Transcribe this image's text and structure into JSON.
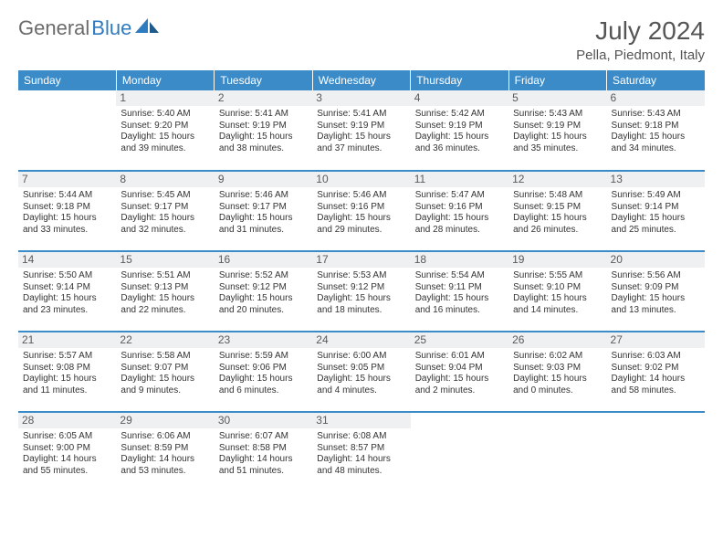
{
  "logo": {
    "text1": "General",
    "text2": "Blue"
  },
  "title": "July 2024",
  "location": "Pella, Piedmont, Italy",
  "colors": {
    "header_bg": "#3b8bc9",
    "header_text": "#ffffff",
    "daynum_bg": "#eef0f2",
    "border": "#3b8bc9",
    "logo_gray": "#6b6b6b",
    "logo_blue": "#2f7bbf"
  },
  "day_headers": [
    "Sunday",
    "Monday",
    "Tuesday",
    "Wednesday",
    "Thursday",
    "Friday",
    "Saturday"
  ],
  "start_offset": 1,
  "days": [
    {
      "n": 1,
      "sr": "5:40 AM",
      "ss": "9:20 PM",
      "dl": "15 hours and 39 minutes."
    },
    {
      "n": 2,
      "sr": "5:41 AM",
      "ss": "9:19 PM",
      "dl": "15 hours and 38 minutes."
    },
    {
      "n": 3,
      "sr": "5:41 AM",
      "ss": "9:19 PM",
      "dl": "15 hours and 37 minutes."
    },
    {
      "n": 4,
      "sr": "5:42 AM",
      "ss": "9:19 PM",
      "dl": "15 hours and 36 minutes."
    },
    {
      "n": 5,
      "sr": "5:43 AM",
      "ss": "9:19 PM",
      "dl": "15 hours and 35 minutes."
    },
    {
      "n": 6,
      "sr": "5:43 AM",
      "ss": "9:18 PM",
      "dl": "15 hours and 34 minutes."
    },
    {
      "n": 7,
      "sr": "5:44 AM",
      "ss": "9:18 PM",
      "dl": "15 hours and 33 minutes."
    },
    {
      "n": 8,
      "sr": "5:45 AM",
      "ss": "9:17 PM",
      "dl": "15 hours and 32 minutes."
    },
    {
      "n": 9,
      "sr": "5:46 AM",
      "ss": "9:17 PM",
      "dl": "15 hours and 31 minutes."
    },
    {
      "n": 10,
      "sr": "5:46 AM",
      "ss": "9:16 PM",
      "dl": "15 hours and 29 minutes."
    },
    {
      "n": 11,
      "sr": "5:47 AM",
      "ss": "9:16 PM",
      "dl": "15 hours and 28 minutes."
    },
    {
      "n": 12,
      "sr": "5:48 AM",
      "ss": "9:15 PM",
      "dl": "15 hours and 26 minutes."
    },
    {
      "n": 13,
      "sr": "5:49 AM",
      "ss": "9:14 PM",
      "dl": "15 hours and 25 minutes."
    },
    {
      "n": 14,
      "sr": "5:50 AM",
      "ss": "9:14 PM",
      "dl": "15 hours and 23 minutes."
    },
    {
      "n": 15,
      "sr": "5:51 AM",
      "ss": "9:13 PM",
      "dl": "15 hours and 22 minutes."
    },
    {
      "n": 16,
      "sr": "5:52 AM",
      "ss": "9:12 PM",
      "dl": "15 hours and 20 minutes."
    },
    {
      "n": 17,
      "sr": "5:53 AM",
      "ss": "9:12 PM",
      "dl": "15 hours and 18 minutes."
    },
    {
      "n": 18,
      "sr": "5:54 AM",
      "ss": "9:11 PM",
      "dl": "15 hours and 16 minutes."
    },
    {
      "n": 19,
      "sr": "5:55 AM",
      "ss": "9:10 PM",
      "dl": "15 hours and 14 minutes."
    },
    {
      "n": 20,
      "sr": "5:56 AM",
      "ss": "9:09 PM",
      "dl": "15 hours and 13 minutes."
    },
    {
      "n": 21,
      "sr": "5:57 AM",
      "ss": "9:08 PM",
      "dl": "15 hours and 11 minutes."
    },
    {
      "n": 22,
      "sr": "5:58 AM",
      "ss": "9:07 PM",
      "dl": "15 hours and 9 minutes."
    },
    {
      "n": 23,
      "sr": "5:59 AM",
      "ss": "9:06 PM",
      "dl": "15 hours and 6 minutes."
    },
    {
      "n": 24,
      "sr": "6:00 AM",
      "ss": "9:05 PM",
      "dl": "15 hours and 4 minutes."
    },
    {
      "n": 25,
      "sr": "6:01 AM",
      "ss": "9:04 PM",
      "dl": "15 hours and 2 minutes."
    },
    {
      "n": 26,
      "sr": "6:02 AM",
      "ss": "9:03 PM",
      "dl": "15 hours and 0 minutes."
    },
    {
      "n": 27,
      "sr": "6:03 AM",
      "ss": "9:02 PM",
      "dl": "14 hours and 58 minutes."
    },
    {
      "n": 28,
      "sr": "6:05 AM",
      "ss": "9:00 PM",
      "dl": "14 hours and 55 minutes."
    },
    {
      "n": 29,
      "sr": "6:06 AM",
      "ss": "8:59 PM",
      "dl": "14 hours and 53 minutes."
    },
    {
      "n": 30,
      "sr": "6:07 AM",
      "ss": "8:58 PM",
      "dl": "14 hours and 51 minutes."
    },
    {
      "n": 31,
      "sr": "6:08 AM",
      "ss": "8:57 PM",
      "dl": "14 hours and 48 minutes."
    }
  ],
  "labels": {
    "sunrise": "Sunrise:",
    "sunset": "Sunset:",
    "daylight": "Daylight:"
  }
}
